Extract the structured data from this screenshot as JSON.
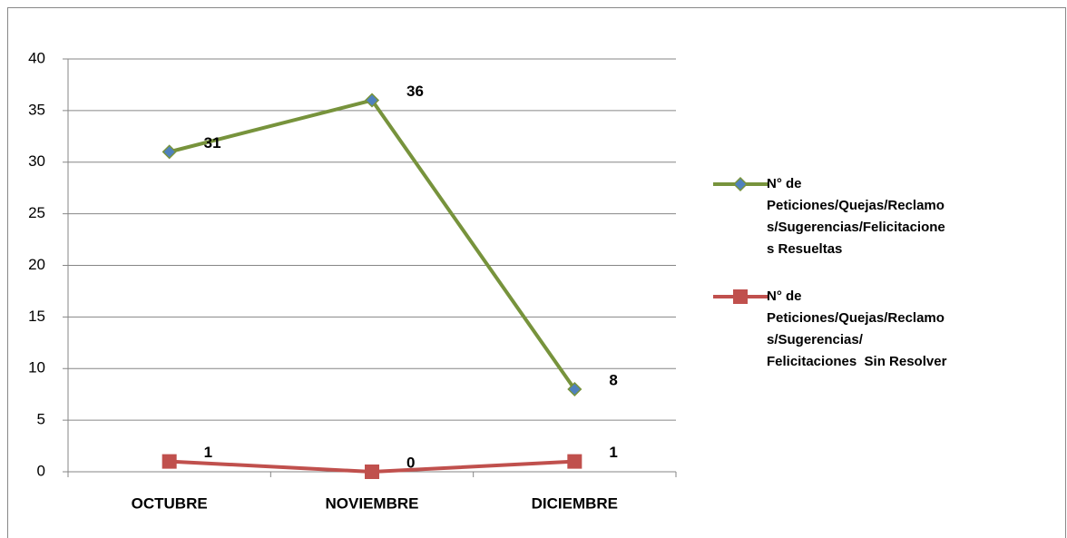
{
  "chart_data": {
    "type": "line",
    "categories": [
      "OCTUBRE",
      "NOVIEMBRE",
      "DICIEMBRE"
    ],
    "series": [
      {
        "name": "N° de Peticiones/Quejas/Reclamos/Sugerencias/Felicitaciones Resueltas",
        "color": "#77933c",
        "marker_color": "#4f81bd",
        "marker": "diamond",
        "values": [
          31,
          36,
          8
        ]
      },
      {
        "name": "N° de Peticiones/Quejas/Reclamos/Sugerencias/ Felicitaciones  Sin Resolver",
        "color": "#c0504d",
        "marker_color": "#c0504d",
        "marker": "square",
        "values": [
          1,
          0,
          1
        ]
      }
    ],
    "ylim": [
      0,
      40
    ],
    "yticks": [
      0,
      5,
      10,
      15,
      20,
      25,
      30,
      35,
      40
    ],
    "grid": true,
    "legend": "right"
  }
}
